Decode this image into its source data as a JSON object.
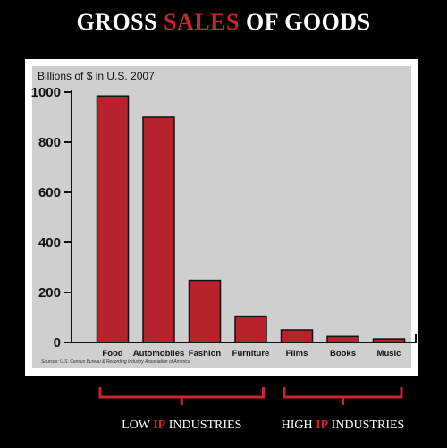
{
  "title": {
    "prefix": "GROSS ",
    "accent": "SALES",
    "suffix": " OF GOODS"
  },
  "chart_data": {
    "type": "bar",
    "title": "GROSS SALES OF GOODS",
    "ylabel": "Billions of $ in U.S. 2007",
    "xlabel": "",
    "categories": [
      "Food",
      "Automobiles",
      "Fashion",
      "Furniture",
      "Films",
      "Books",
      "Music"
    ],
    "values": [
      985,
      900,
      248,
      105,
      50,
      24,
      14
    ],
    "ylim": [
      0,
      1000
    ],
    "yticks": [
      0,
      200,
      400,
      600,
      800,
      1000
    ],
    "grid": false,
    "bar_color": "#b8222c",
    "source": "Sources: U.S. Census Bureau & Recording Industry Association of America"
  },
  "groups": [
    {
      "pre": "LOW ",
      "accent": "IP",
      "post": " INDUSTRIES",
      "categories": [
        "Food",
        "Automobiles",
        "Fashion",
        "Furniture"
      ]
    },
    {
      "pre": "HIGH ",
      "accent": "IP",
      "post": " INDUSTRIES",
      "categories": [
        "Films",
        "Books",
        "Music"
      ]
    }
  ],
  "colors": {
    "accent": "#c8252f",
    "background": "#000000",
    "plot_background": "#cfcfcf"
  }
}
